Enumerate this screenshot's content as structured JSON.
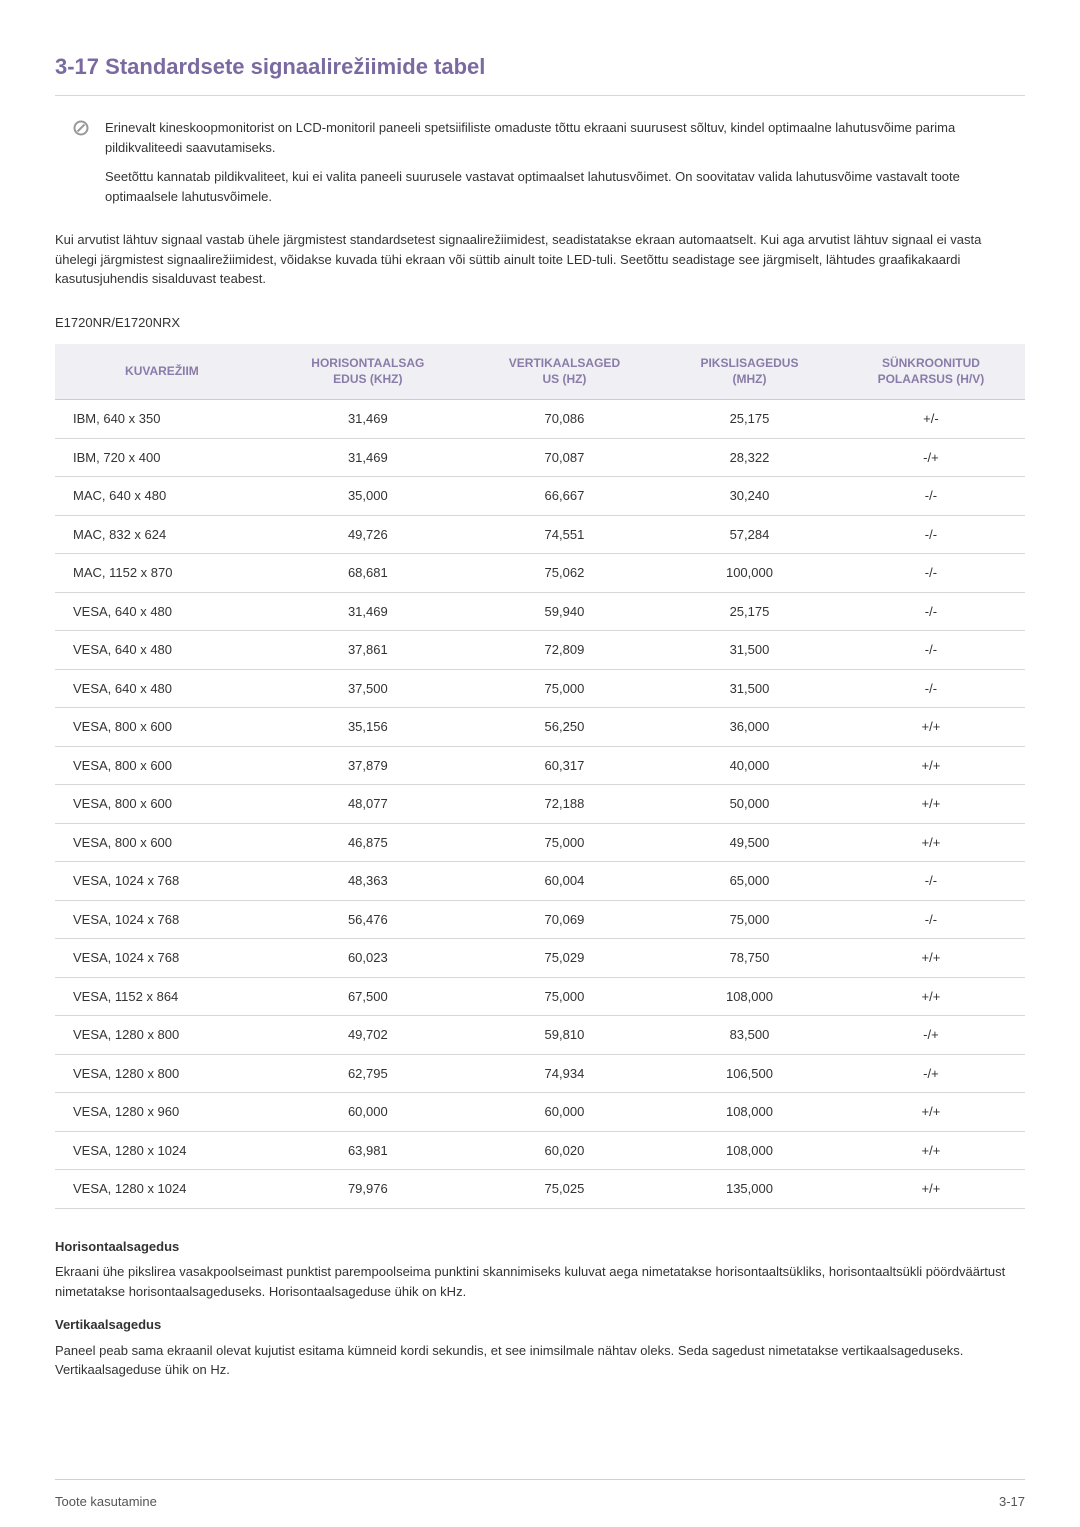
{
  "title": "3-17  Standardsete signaalirežiimide tabel",
  "note": {
    "p1": "Erinevalt kineskoopmonitorist on LCD-monitoril paneeli spetsiifiliste omaduste tõttu ekraani suurusest sõltuv, kindel optimaalne lahutusvõime parima pildikvaliteedi saavutamiseks.",
    "p2": "Seetõttu kannatab pildikvaliteet, kui ei valita paneeli suurusele vastavat optimaalset lahutusvõimet. On soovitatav valida lahutusvõime vastavalt toote optimaalsele lahutusvõimele."
  },
  "body1": "Kui arvutist lähtuv signaal vastab ühele järgmistest standardsetest signaalirežiimidest, seadistatakse ekraan automaatselt. Kui aga arvutist lähtuv signaal ei vasta ühelegi järgmistest signaalirežiimidest, võidakse kuvada tühi ekraan või süttib ainult toite LED-tuli. Seetõttu seadistage see järgmiselt, lähtudes graafikakaardi kasutusjuhendis sisalduvast teabest.",
  "model": "E1720NR/E1720NRX",
  "table": {
    "headers": {
      "c0": "KUVAREŽIIM",
      "c1": "HORISONTAALSAGEDUS (KHZ)",
      "c1a": "HORISONTAALSAG",
      "c1b": "EDUS (KHZ)",
      "c2a": "VERTIKAALSAGED",
      "c2b": "US (HZ)",
      "c3a": "PIKSLISAGEDUS",
      "c3b": "(MHZ)",
      "c4a": "SÜNKROONITUD",
      "c4b": "POLAARSUS (H/V)"
    },
    "rows": [
      {
        "c0": "IBM, 640 x 350",
        "c1": "31,469",
        "c2": "70,086",
        "c3": "25,175",
        "c4": "+/-"
      },
      {
        "c0": "IBM, 720 x 400",
        "c1": "31,469",
        "c2": "70,087",
        "c3": "28,322",
        "c4": "-/+"
      },
      {
        "c0": "MAC, 640 x 480",
        "c1": "35,000",
        "c2": "66,667",
        "c3": "30,240",
        "c4": "-/-"
      },
      {
        "c0": "MAC, 832 x 624",
        "c1": "49,726",
        "c2": "74,551",
        "c3": "57,284",
        "c4": "-/-"
      },
      {
        "c0": "MAC, 1152 x 870",
        "c1": "68,681",
        "c2": "75,062",
        "c3": "100,000",
        "c4": "-/-"
      },
      {
        "c0": "VESA, 640 x 480",
        "c1": "31,469",
        "c2": "59,940",
        "c3": "25,175",
        "c4": "-/-"
      },
      {
        "c0": "VESA, 640 x 480",
        "c1": "37,861",
        "c2": "72,809",
        "c3": "31,500",
        "c4": "-/-"
      },
      {
        "c0": "VESA, 640 x 480",
        "c1": "37,500",
        "c2": "75,000",
        "c3": "31,500",
        "c4": "-/-"
      },
      {
        "c0": "VESA, 800 x 600",
        "c1": "35,156",
        "c2": "56,250",
        "c3": "36,000",
        "c4": "+/+"
      },
      {
        "c0": "VESA, 800 x 600",
        "c1": "37,879",
        "c2": "60,317",
        "c3": "40,000",
        "c4": "+/+"
      },
      {
        "c0": "VESA, 800 x 600",
        "c1": "48,077",
        "c2": "72,188",
        "c3": "50,000",
        "c4": "+/+"
      },
      {
        "c0": "VESA, 800 x 600",
        "c1": "46,875",
        "c2": "75,000",
        "c3": "49,500",
        "c4": "+/+"
      },
      {
        "c0": "VESA, 1024 x 768",
        "c1": "48,363",
        "c2": "60,004",
        "c3": "65,000",
        "c4": "-/-"
      },
      {
        "c0": "VESA, 1024 x 768",
        "c1": "56,476",
        "c2": "70,069",
        "c3": "75,000",
        "c4": "-/-"
      },
      {
        "c0": "VESA, 1024 x 768",
        "c1": "60,023",
        "c2": "75,029",
        "c3": "78,750",
        "c4": "+/+"
      },
      {
        "c0": "VESA, 1152 x 864",
        "c1": "67,500",
        "c2": "75,000",
        "c3": "108,000",
        "c4": "+/+"
      },
      {
        "c0": "VESA, 1280 x 800",
        "c1": "49,702",
        "c2": "59,810",
        "c3": "83,500",
        "c4": "-/+"
      },
      {
        "c0": "VESA, 1280 x 800",
        "c1": "62,795",
        "c2": "74,934",
        "c3": "106,500",
        "c4": "-/+"
      },
      {
        "c0": "VESA, 1280 x 960",
        "c1": "60,000",
        "c2": "60,000",
        "c3": "108,000",
        "c4": "+/+"
      },
      {
        "c0": "VESA, 1280 x 1024",
        "c1": "63,981",
        "c2": "60,020",
        "c3": "108,000",
        "c4": "+/+"
      },
      {
        "c0": "VESA, 1280 x 1024",
        "c1": "79,976",
        "c2": "75,025",
        "c3": "135,000",
        "c4": "+/+"
      }
    ]
  },
  "defs": {
    "h1": "Horisontaalsagedus",
    "b1": "Ekraani ühe pikslirea vasakpoolseimast punktist parempoolseima punktini skannimiseks kuluvat aega nimetatakse horisontaaltsükliks, horisontaaltsükli pöördväärtust nimetatakse horisontaalsageduseks. Horisontaalsageduse ühik on kHz.",
    "h2": "Vertikaalsagedus",
    "b2": "Paneel peab sama ekraanil olevat kujutist esitama kümneid kordi sekundis, et see inimsilmale nähtav oleks. Seda sagedust nimetatakse vertikaalsageduseks. Vertikaalsageduse ühik on Hz."
  },
  "footer": {
    "left": "Toote kasutamine",
    "right": "3-17"
  },
  "colors": {
    "heading": "#7a6aa0",
    "th_text": "#8a7ca8",
    "th_bg": "#f0eff4",
    "border": "#d8d8d8"
  }
}
